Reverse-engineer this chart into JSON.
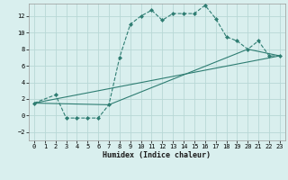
{
  "title": "",
  "xlabel": "Humidex (Indice chaleur)",
  "xlim": [
    -0.5,
    23.5
  ],
  "ylim": [
    -3,
    13.5
  ],
  "xticks": [
    0,
    1,
    2,
    3,
    4,
    5,
    6,
    7,
    8,
    9,
    10,
    11,
    12,
    13,
    14,
    15,
    16,
    17,
    18,
    19,
    20,
    21,
    22,
    23
  ],
  "yticks": [
    -2,
    0,
    2,
    4,
    6,
    8,
    10,
    12
  ],
  "background_color": "#d9efee",
  "grid_color": "#b8d8d6",
  "line_color": "#2e7d72",
  "line1_x": [
    0,
    2,
    3,
    4,
    5,
    6,
    7,
    8,
    9,
    10,
    11,
    12,
    13,
    14,
    15,
    16,
    17,
    18,
    19,
    20,
    21,
    22,
    23
  ],
  "line1_y": [
    1.5,
    2.5,
    -0.3,
    -0.3,
    -0.3,
    -0.3,
    1.3,
    7.0,
    11.0,
    12.0,
    12.7,
    11.5,
    12.3,
    12.3,
    12.3,
    13.3,
    11.7,
    9.5,
    9.0,
    8.0,
    9.0,
    7.2,
    7.2
  ],
  "line2_x": [
    0,
    23
  ],
  "line2_y": [
    1.5,
    7.2
  ],
  "line3_x": [
    0,
    7,
    20,
    23
  ],
  "line3_y": [
    1.5,
    1.3,
    8.0,
    7.2
  ]
}
